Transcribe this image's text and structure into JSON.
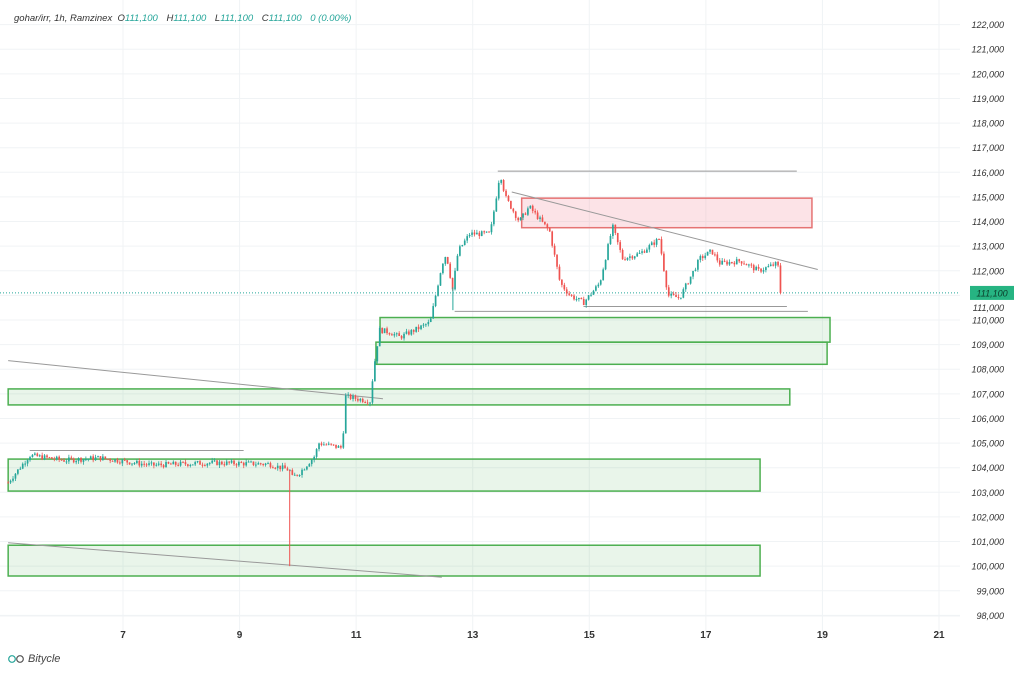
{
  "legend": {
    "symbol": "gohar/irr, 1h, Ramzinex",
    "open_label": "O",
    "open": "111,100",
    "high_label": "H",
    "high": "111,100",
    "low_label": "L",
    "low": "111,100",
    "close_label": "C",
    "close": "111,100",
    "change": "0 (0.00%)"
  },
  "brand": {
    "name": "Bitycle",
    "icon": "bicycle-logo-icon"
  },
  "colors": {
    "up": "#26a69a",
    "down": "#ef5350",
    "zone_green": "#4caf50",
    "zone_red": "#e57373",
    "last_price_bg": "#26b482"
  },
  "chart_data": {
    "type": "candlestick",
    "timeframe": "1h",
    "x_ticks": [
      "7",
      "9",
      "11",
      "13",
      "15",
      "17",
      "19",
      "21"
    ],
    "y_ticks": [
      "98,000",
      "99,000",
      "100,000",
      "101,000",
      "102,000",
      "103,000",
      "104,000",
      "105,000",
      "106,000",
      "107,000",
      "108,000",
      "109,000",
      "110,000",
      "111,000",
      "112,000",
      "113,000",
      "114,000",
      "115,000",
      "116,000",
      "117,000",
      "118,000",
      "119,000",
      "120,000",
      "121,000",
      "122,000"
    ],
    "ylim": [
      97000,
      123000
    ],
    "xlim_day": [
      4.89,
      21.36
    ],
    "grid": true,
    "last_price": 111100,
    "last_price_label": "111,100",
    "price_path": [
      [
        5.03,
        103400
      ],
      [
        5.4,
        104500
      ],
      [
        6.0,
        104300
      ],
      [
        6.6,
        104400
      ],
      [
        7.5,
        104100
      ],
      [
        8.5,
        104200
      ],
      [
        9.5,
        104150
      ],
      [
        9.86,
        103900
      ],
      [
        9.9,
        103600
      ],
      [
        10.03,
        103800
      ],
      [
        10.3,
        104500
      ],
      [
        10.35,
        105000
      ],
      [
        10.77,
        104800
      ],
      [
        10.8,
        106900
      ],
      [
        11.24,
        106700
      ],
      [
        11.3,
        108000
      ],
      [
        11.4,
        109600
      ],
      [
        11.58,
        109500
      ],
      [
        11.75,
        109300
      ],
      [
        12.27,
        109900
      ],
      [
        12.45,
        112000
      ],
      [
        12.52,
        112650
      ],
      [
        12.6,
        112200
      ],
      [
        12.64,
        111000
      ],
      [
        12.75,
        112800
      ],
      [
        12.95,
        113500
      ],
      [
        13.3,
        113500
      ],
      [
        13.39,
        114800
      ],
      [
        13.47,
        116000
      ],
      [
        13.56,
        115000
      ],
      [
        13.8,
        114000
      ],
      [
        13.97,
        114600
      ],
      [
        14.32,
        113600
      ],
      [
        14.5,
        111500
      ],
      [
        14.67,
        111000
      ],
      [
        14.9,
        110700
      ],
      [
        15.18,
        111500
      ],
      [
        15.4,
        113800
      ],
      [
        15.57,
        112500
      ],
      [
        15.87,
        112700
      ],
      [
        16.2,
        113300
      ],
      [
        16.35,
        111000
      ],
      [
        16.55,
        110900
      ],
      [
        16.9,
        112500
      ],
      [
        17.1,
        112800
      ],
      [
        17.24,
        112300
      ],
      [
        17.6,
        112400
      ],
      [
        17.9,
        112000
      ],
      [
        18.23,
        112300
      ],
      [
        18.3,
        111100
      ]
    ],
    "wicks": [
      {
        "day": 9.86,
        "low": 100000
      },
      {
        "day": 12.66,
        "low": 110400
      }
    ],
    "zones": [
      {
        "kind": "supply",
        "from_day": 13.84,
        "to_day": 18.82,
        "low": 113750,
        "high": 114950
      },
      {
        "kind": "demand",
        "from_day": 11.41,
        "to_day": 19.13,
        "low": 109100,
        "high": 110100
      },
      {
        "kind": "demand",
        "from_day": 11.34,
        "to_day": 19.08,
        "low": 108200,
        "high": 109100
      },
      {
        "kind": "demand",
        "from_day": 5.03,
        "to_day": 18.44,
        "low": 106550,
        "high": 107200
      },
      {
        "kind": "demand",
        "from_day": 5.03,
        "to_day": 17.93,
        "low": 103050,
        "high": 104350
      },
      {
        "kind": "demand",
        "from_day": 5.03,
        "to_day": 17.93,
        "low": 99600,
        "high": 100850
      }
    ],
    "lines": [
      {
        "from": [
          13.43,
          116050
        ],
        "to": [
          18.56,
          116050
        ]
      },
      {
        "from": [
          12.69,
          110350
        ],
        "to": [
          18.75,
          110350
        ]
      },
      {
        "from": [
          14.9,
          110550
        ],
        "to": [
          18.39,
          110550
        ]
      },
      {
        "from": [
          13.67,
          115200
        ],
        "to": [
          18.92,
          112050
        ]
      },
      {
        "from": [
          5.03,
          108350
        ],
        "to": [
          11.46,
          106800
        ]
      },
      {
        "from": [
          5.03,
          100950
        ],
        "to": [
          12.47,
          99550
        ]
      },
      {
        "from": [
          5.4,
          104700
        ],
        "to": [
          9.07,
          104700
        ]
      }
    ]
  }
}
